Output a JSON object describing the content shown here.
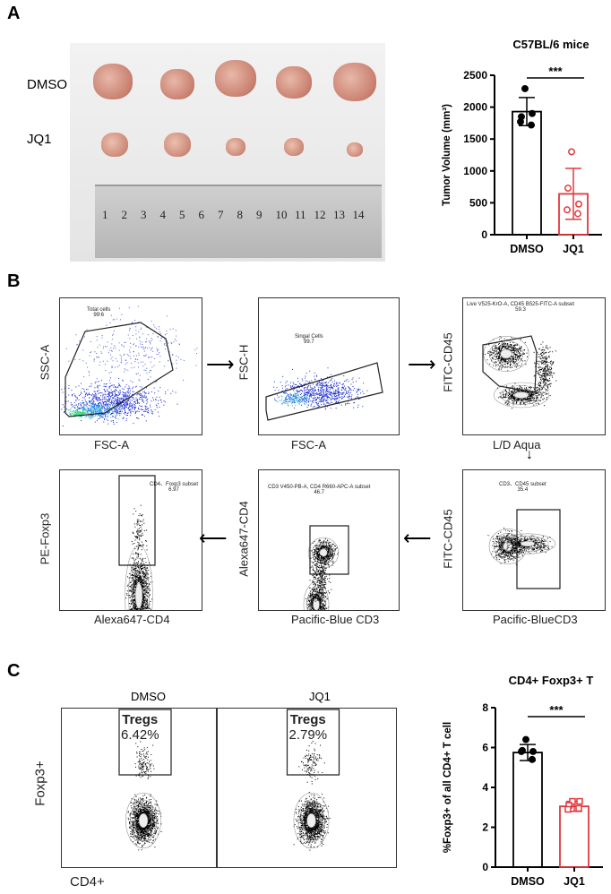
{
  "panels": {
    "a": "A",
    "b": "B",
    "c": "C"
  },
  "photo": {
    "rows": [
      "DMSO",
      "JQ1"
    ],
    "ruler_numbers": [
      "1",
      "2",
      "3",
      "4",
      "5",
      "6",
      "7",
      "8",
      "9",
      "10",
      "11",
      "12",
      "13",
      "14"
    ]
  },
  "flow_b": [
    {
      "x_label": "FSC-A",
      "y_label": "SSC-A",
      "gate_name": "Total cells",
      "gate_value": "99.6"
    },
    {
      "x_label": "FSC-A",
      "y_label": "FSC-H",
      "gate_name": "Singal Cells",
      "gate_value": "99.7"
    },
    {
      "x_label": "L/D Aqua",
      "y_label": "FITC-CD45",
      "gate_name": "Live V525-KrO-A, CD45 B525-FITC-A subset",
      "gate_value": "59.3"
    },
    {
      "x_label": "Pacific-BlueCD3",
      "y_label": "FITC-CD45",
      "gate_name": "CD3、CD45  subset",
      "gate_value": "35.4"
    },
    {
      "x_label": "Pacific-Blue CD3",
      "y_label": "Alexa647-CD4",
      "gate_name": "CD3 V450-PB-A, CD4 R660-APC-A subset",
      "gate_value": "46.7"
    },
    {
      "x_label": "Alexa647-CD4",
      "y_label": "PE-Foxp3",
      "gate_name": "CD4、Foxp3 subset",
      "gate_value": "6.97"
    }
  ],
  "flow_c": {
    "x_label": "CD4+",
    "y_label": "Foxp3+",
    "plots": [
      {
        "title": "DMSO",
        "gate_name": "Tregs",
        "gate_value": "6.42%"
      },
      {
        "title": "JQ1",
        "gate_name": "Tregs",
        "gate_value": "2.79%"
      }
    ]
  },
  "colors": {
    "dmso": "#000000",
    "jq1": "#e0393e"
  },
  "chart_data": [
    {
      "type": "bar",
      "title": "C57BL/6 mice",
      "xlabel": "",
      "ylabel": "Tumor Volume (mm³)",
      "ylim": [
        0,
        2500
      ],
      "yticks": [
        "0",
        "500",
        "1000",
        "1500",
        "2000",
        "2500"
      ],
      "categories": [
        "DMSO",
        "JQ1"
      ],
      "values": [
        1930,
        640
      ],
      "sd": [
        220,
        400
      ],
      "points": [
        [
          2290,
          1850,
          1900,
          1770,
          1720
        ],
        [
          1300,
          730,
          480,
          390,
          330
        ]
      ],
      "significance": "***"
    },
    {
      "type": "bar",
      "title": "CD4+ Foxp3+ T",
      "xlabel": "",
      "ylabel": "%Foxp3+ of all CD4+ T cell",
      "ylim": [
        0,
        8
      ],
      "yticks": [
        "0",
        "2",
        "4",
        "6",
        "8"
      ],
      "categories": [
        "DMSO",
        "JQ1"
      ],
      "values": [
        5.75,
        3.05
      ],
      "sd": [
        0.4,
        0.25
      ],
      "points": [
        [
          6.4,
          5.85,
          5.8,
          5.8,
          5.4
        ],
        [
          3.3,
          3.1,
          3.3,
          2.9,
          2.95
        ]
      ],
      "significance": "***"
    }
  ]
}
